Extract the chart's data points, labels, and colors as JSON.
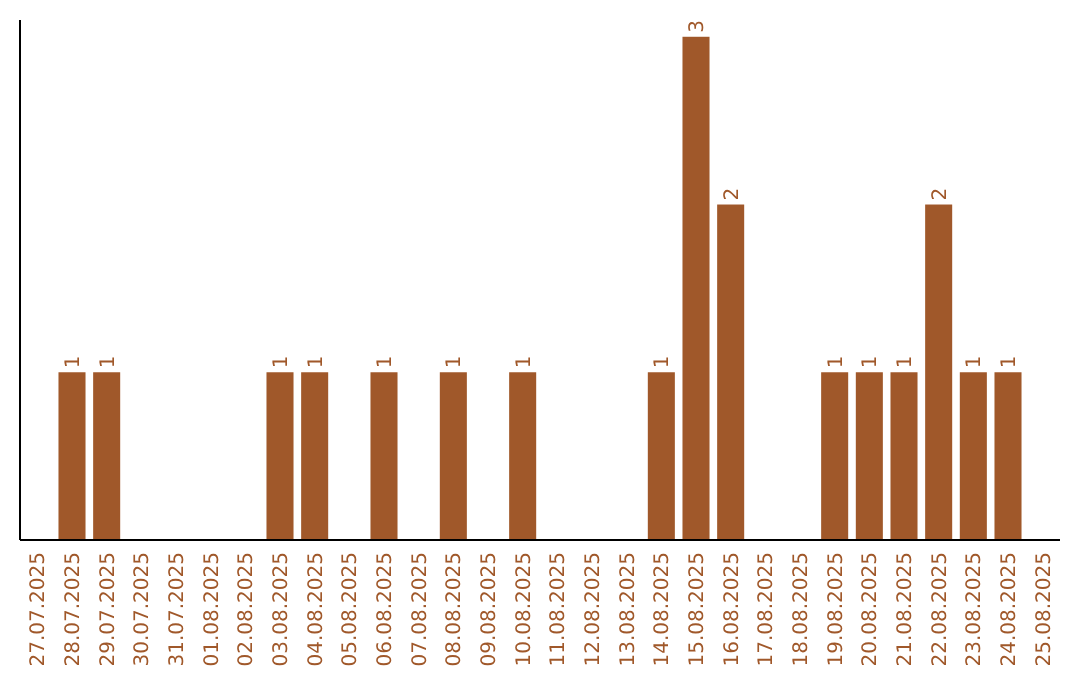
{
  "chart_data": {
    "type": "bar",
    "categories": [
      "27.07.2025",
      "28.07.2025",
      "29.07.2025",
      "30.07.2025",
      "31.07.2025",
      "01.08.2025",
      "02.08.2025",
      "03.08.2025",
      "04.08.2025",
      "05.08.2025",
      "06.08.2025",
      "07.08.2025",
      "08.08.2025",
      "09.08.2025",
      "10.08.2025",
      "11.08.2025",
      "12.08.2025",
      "13.08.2025",
      "14.08.2025",
      "15.08.2025",
      "16.08.2025",
      "17.08.2025",
      "18.08.2025",
      "19.08.2025",
      "20.08.2025",
      "21.08.2025",
      "22.08.2025",
      "23.08.2025",
      "24.08.2025",
      "25.08.2025"
    ],
    "values": [
      null,
      1,
      1,
      null,
      null,
      null,
      null,
      1,
      1,
      null,
      1,
      null,
      1,
      null,
      1,
      null,
      null,
      null,
      1,
      3,
      2,
      null,
      null,
      1,
      1,
      1,
      2,
      1,
      1,
      null
    ],
    "color": "#a0582a",
    "ylim": [
      0,
      3.1
    ],
    "tick_labels": "x",
    "data_labels": true
  }
}
